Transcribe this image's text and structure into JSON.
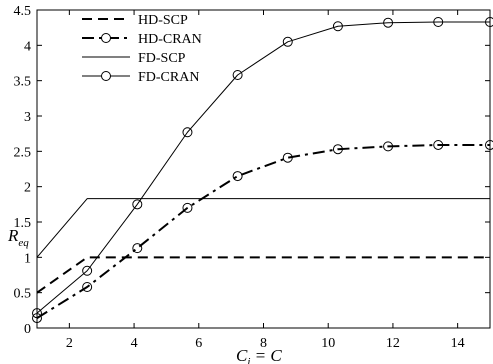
{
  "chart_data": {
    "type": "line",
    "xlabel": {
      "main": "C",
      "sub": "i",
      "eq": " = C"
    },
    "ylabel": {
      "main": "R",
      "sub": "eq"
    },
    "xlim": [
      1,
      15
    ],
    "ylim": [
      0,
      4.5
    ],
    "xticks": [
      2,
      4,
      6,
      8,
      10,
      12,
      14
    ],
    "yticks": [
      0,
      0.5,
      1,
      1.5,
      2,
      2.5,
      3,
      3.5,
      4,
      4.5
    ],
    "grid": false,
    "legend_position": "top-left",
    "series": [
      {
        "name": "HD-SCP",
        "style": "dashed",
        "marker": "none",
        "x": [
          1,
          2.55,
          15
        ],
        "y": [
          0.5,
          1.0,
          1.0
        ]
      },
      {
        "name": "HD-CRAN",
        "style": "dashdot",
        "marker": "circle",
        "x": [
          1,
          2.55,
          4.1,
          5.65,
          7.2,
          8.75,
          10.3,
          11.85,
          13.4,
          15
        ],
        "y": [
          0.14,
          0.58,
          1.13,
          1.7,
          2.15,
          2.41,
          2.53,
          2.57,
          2.59,
          2.59
        ]
      },
      {
        "name": "FD-SCP",
        "style": "solid",
        "marker": "none",
        "x": [
          1,
          2.55,
          15
        ],
        "y": [
          1.0,
          1.83,
          1.83
        ]
      },
      {
        "name": "FD-CRAN",
        "style": "solid",
        "marker": "circle",
        "x": [
          1,
          2.55,
          4.1,
          5.65,
          7.2,
          8.75,
          10.3,
          11.85,
          13.4,
          15
        ],
        "y": [
          0.21,
          0.81,
          1.75,
          2.77,
          3.58,
          4.05,
          4.27,
          4.32,
          4.33,
          4.33
        ]
      }
    ]
  }
}
